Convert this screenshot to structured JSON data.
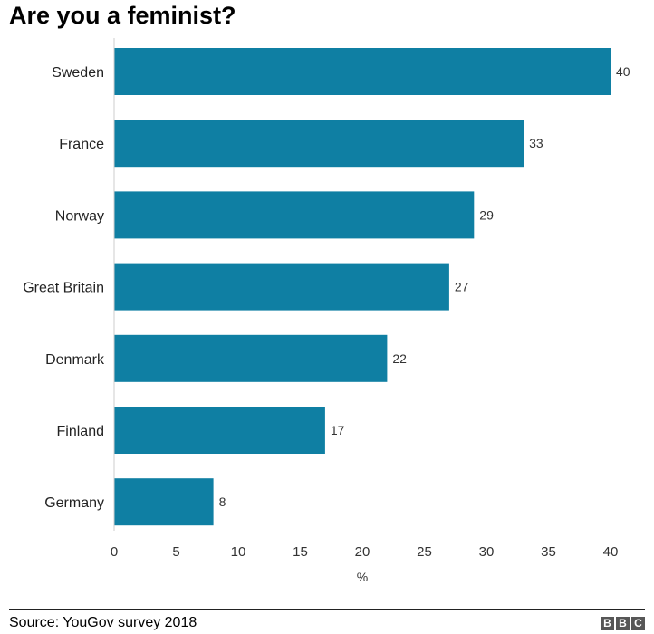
{
  "chart_data": {
    "type": "bar",
    "orientation": "horizontal",
    "title": "Are you a feminist?",
    "categories": [
      "Sweden",
      "France",
      "Norway",
      "Great Britain",
      "Denmark",
      "Finland",
      "Germany"
    ],
    "values": [
      40,
      33,
      29,
      27,
      22,
      17,
      8
    ],
    "xlabel": "%",
    "ylabel": "",
    "xlim": [
      0,
      40
    ],
    "xticks": [
      0,
      5,
      10,
      15,
      20,
      25,
      30,
      35,
      40
    ],
    "bar_color": "#0f7fa3",
    "grid": false,
    "data_labels": true
  },
  "footer": {
    "source": "Source: YouGov survey 2018",
    "logo_letters": [
      "B",
      "B",
      "C"
    ]
  }
}
